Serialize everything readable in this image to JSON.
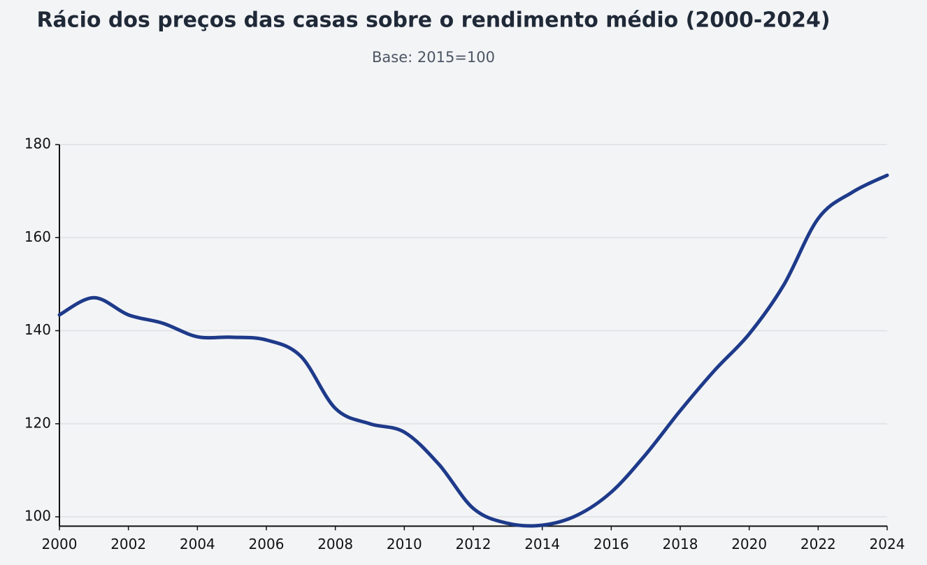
{
  "chart_data": {
    "type": "line",
    "title": "Rácio dos preços das casas sobre o rendimento médio (2000-2024)",
    "subtitle": "Base: 2015=100",
    "x": [
      2000,
      2001,
      2002,
      2003,
      2004,
      2005,
      2006,
      2007,
      2008,
      2009,
      2010,
      2011,
      2012,
      2013,
      2014,
      2015,
      2016,
      2017,
      2018,
      2019,
      2020,
      2021,
      2022,
      2023,
      2024
    ],
    "series": [
      {
        "color": "#1e3a8a",
        "values": [
          143.4,
          147.1,
          143.4,
          141.6,
          138.7,
          138.6,
          138.0,
          134.5,
          123.3,
          120.0,
          118.2,
          111.3,
          101.8,
          98.6,
          98.2,
          100.3,
          105.3,
          113.4,
          122.8,
          131.5,
          139.3,
          149.8,
          164.1,
          169.8,
          173.4
        ]
      }
    ],
    "xlim": [
      2000,
      2024
    ],
    "xticks": [
      2000,
      2002,
      2004,
      2006,
      2008,
      2010,
      2012,
      2014,
      2016,
      2018,
      2020,
      2022,
      2024
    ],
    "ylim": [
      98,
      180
    ],
    "yticks": [
      100,
      120,
      140,
      160,
      180
    ],
    "grid": true
  }
}
